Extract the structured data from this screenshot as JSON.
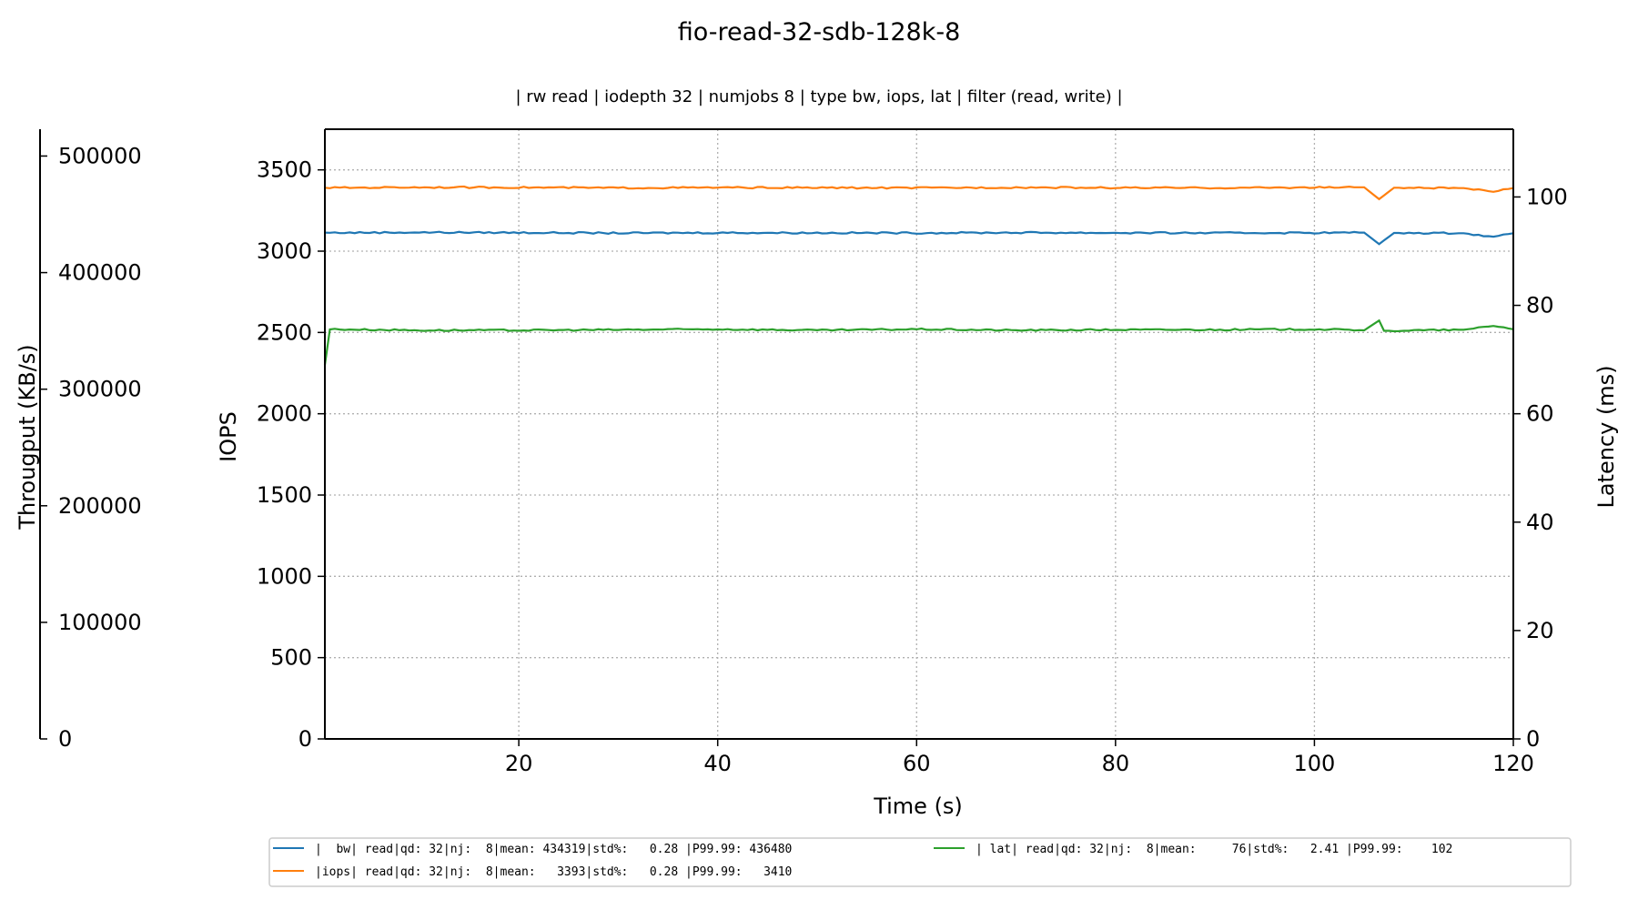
{
  "chart_data": {
    "type": "line",
    "title": "fio-read-32-sdb-128k-8",
    "subtitle": "| rw read | iodepth 32 | numjobs 8 | type bw, iops, lat | filter (read, write) |",
    "xlabel": "Time (s)",
    "xlim": [
      0.5,
      120
    ],
    "xticks": [
      20,
      40,
      60,
      80,
      100,
      120
    ],
    "grid": true,
    "axes": {
      "iops": {
        "label": "IOPS",
        "side": "left",
        "lim": [
          0,
          3750
        ],
        "ticks": [
          0,
          500,
          1000,
          1500,
          2000,
          2500,
          3000,
          3500
        ]
      },
      "bw": {
        "label": "Througput (KB/s)",
        "side": "far-left",
        "lim": [
          0,
          523000
        ],
        "ticks": [
          0,
          100000,
          200000,
          300000,
          400000,
          500000
        ]
      },
      "lat": {
        "label": "Latency (ms)",
        "side": "right",
        "lim": [
          0,
          112.5
        ],
        "ticks": [
          0,
          20,
          40,
          60,
          80,
          100
        ]
      }
    },
    "series": [
      {
        "key": "bw",
        "axis": "bw",
        "color": "#1f77b4",
        "mean": 434319,
        "start": [
          0.5,
          434300
        ],
        "points": [
          [
            1,
            434200
          ],
          [
            10,
            434500
          ],
          [
            20,
            434300
          ],
          [
            30,
            433900
          ],
          [
            40,
            434200
          ],
          [
            50,
            434100
          ],
          [
            60,
            434000
          ],
          [
            70,
            434300
          ],
          [
            80,
            434100
          ],
          [
            90,
            434000
          ],
          [
            100,
            434200
          ],
          [
            105,
            434300
          ],
          [
            106.5,
            424500
          ],
          [
            108,
            434000
          ],
          [
            115,
            433800
          ],
          [
            118,
            430800
          ],
          [
            120,
            433800
          ]
        ]
      },
      {
        "key": "iops",
        "axis": "iops",
        "color": "#ff7f0e",
        "mean": 3393,
        "start": [
          0.5,
          3390
        ],
        "points": [
          [
            1,
            3390
          ],
          [
            10,
            3393
          ],
          [
            20,
            3392
          ],
          [
            30,
            3389
          ],
          [
            40,
            3391
          ],
          [
            50,
            3390
          ],
          [
            60,
            3389
          ],
          [
            70,
            3392
          ],
          [
            80,
            3390
          ],
          [
            90,
            3389
          ],
          [
            100,
            3392
          ],
          [
            105,
            3393
          ],
          [
            106.5,
            3320
          ],
          [
            108,
            3390
          ],
          [
            115,
            3388
          ],
          [
            118,
            3365
          ],
          [
            120,
            3388
          ]
        ]
      },
      {
        "key": "lat",
        "axis": "lat",
        "color": "#2ca02c",
        "mean": 76,
        "start": [
          0.5,
          69
        ],
        "points": [
          [
            0.5,
            69
          ],
          [
            1,
            75.6
          ],
          [
            10,
            75.4
          ],
          [
            20,
            75.4
          ],
          [
            30,
            75.5
          ],
          [
            40,
            75.6
          ],
          [
            50,
            75.4
          ],
          [
            60,
            75.6
          ],
          [
            70,
            75.4
          ],
          [
            80,
            75.5
          ],
          [
            90,
            75.5
          ],
          [
            100,
            75.6
          ],
          [
            105,
            75.4
          ],
          [
            106.5,
            77.2
          ],
          [
            107,
            75.3
          ],
          [
            115,
            75.5
          ],
          [
            118,
            76.2
          ],
          [
            120,
            75.6
          ]
        ]
      }
    ],
    "legend_placement": "bottom",
    "legend": [
      "|  bw| read|qd: 32|nj:  8|mean: 434319|std%:   0.28 |P99.99: 436480",
      "|iops| read|qd: 32|nj:  8|mean:   3393|std%:   0.28 |P99.99:   3410",
      "| lat| read|qd: 32|nj:  8|mean:     76|std%:   2.41 |P99.99:    102"
    ]
  }
}
